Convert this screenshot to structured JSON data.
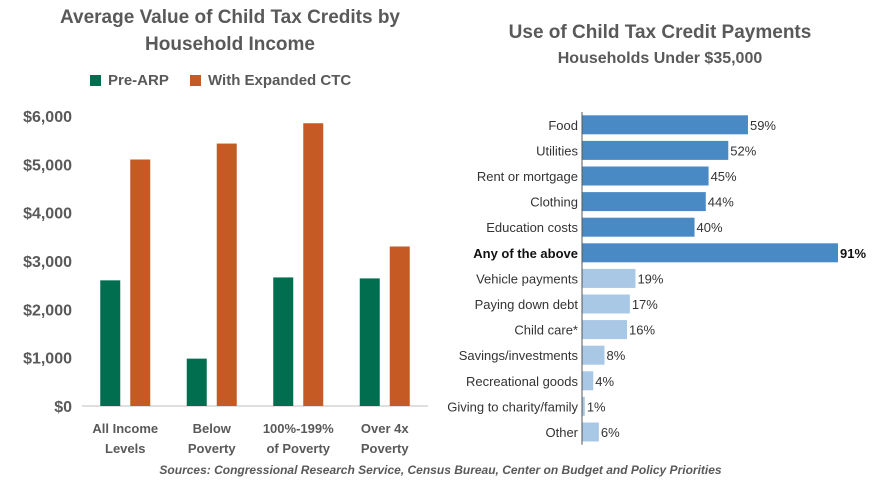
{
  "chart_data": [
    {
      "type": "bar",
      "title": "Average Value of Child Tax Credits by Household Income",
      "categories": [
        [
          "All Income",
          "Levels"
        ],
        [
          "Below",
          "Poverty"
        ],
        [
          "100%-199%",
          "of Poverty"
        ],
        [
          "Over 4x",
          "Poverty"
        ]
      ],
      "series": [
        {
          "name": "Pre-ARP",
          "values": [
            2600,
            980,
            2660,
            2640
          ]
        },
        {
          "name": "With Expanded CTC",
          "values": [
            5100,
            5430,
            5850,
            3300
          ]
        }
      ],
      "ylim": [
        0,
        6000
      ],
      "yticks": [
        "$0",
        "$1,000",
        "$2,000",
        "$3,000",
        "$4,000",
        "$5,000",
        "$6,000"
      ],
      "ytick_values": [
        0,
        1000,
        2000,
        3000,
        4000,
        5000,
        6000
      ],
      "legend": "top",
      "grid": false,
      "colors": [
        "#006e4f",
        "#c55a24"
      ]
    },
    {
      "type": "bar",
      "orientation": "horizontal",
      "title": "Use of Child Tax Credit Payments",
      "subtitle": "Households  Under $35,000",
      "categories": [
        "Food",
        "Utilities",
        "Rent or mortgage",
        "Clothing",
        "Education costs",
        "Any of the above",
        "Vehicle payments",
        "Paying down debt",
        "Child care*",
        "Savings/investments",
        "Recreational goods",
        "Giving to charity/family",
        "Other"
      ],
      "values": [
        59,
        52,
        45,
        44,
        40,
        91,
        19,
        17,
        16,
        8,
        4,
        1,
        6
      ],
      "labels": [
        "59%",
        "52%",
        "45%",
        "44%",
        "40%",
        "91%",
        "19%",
        "17%",
        "16%",
        "8%",
        "4%",
        "1%",
        "6%"
      ],
      "highlight": [
        true,
        true,
        true,
        true,
        true,
        true,
        false,
        false,
        false,
        false,
        false,
        false,
        false
      ],
      "bold": [
        false,
        false,
        false,
        false,
        false,
        true,
        false,
        false,
        false,
        false,
        false,
        false,
        false
      ],
      "xlim": [
        0,
        91
      ],
      "colors": {
        "primary": "#4a8ac4",
        "secondary": "#a8c8e6"
      }
    }
  ],
  "source": "Sources: Congressional Research Service, Census Bureau, Center on Budget and Policy Priorities"
}
